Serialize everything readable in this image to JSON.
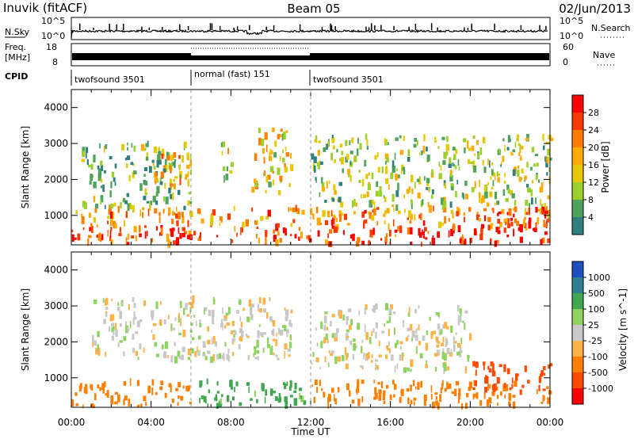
{
  "header": {
    "station": "Inuvik (fitACF)",
    "beam": "Beam 05",
    "date": "02/Jun/2013"
  },
  "top_panels": {
    "nsky_label": "N.Sky",
    "nsky_ticks": [
      "10^5",
      "10^0"
    ],
    "nsearch_label": "N.Search",
    "freq_label": "Freq.",
    "freq_unit": "[MHz]",
    "freq_ticks": [
      "18",
      "8"
    ],
    "nave_ticks": [
      "60",
      "0"
    ],
    "nave_label": "Nave",
    "cpid_label": "CPID",
    "cpid_segments": [
      {
        "name": "twofsound 3501",
        "start": "00:00",
        "end": "06:00"
      },
      {
        "name": "normal (fast) 151",
        "start": "06:00",
        "end": "12:00"
      },
      {
        "name": "twofsound 3501",
        "start": "12:00",
        "end": "24:00"
      }
    ]
  },
  "colorbars": {
    "power": {
      "label": "Power [dB]",
      "ticks": [
        "28",
        "24",
        "20",
        "16",
        "12",
        "8",
        "4"
      ],
      "colors": [
        "#ff0000",
        "#ff3a00",
        "#ff7e00",
        "#ffaa00",
        "#e6c800",
        "#9bd02a",
        "#4fa35a",
        "#2f7f7f",
        "#1f3fa6",
        "#0000ff"
      ]
    },
    "velocity": {
      "label": "Velocity [m s^-1]",
      "ticks": [
        "1000",
        "500",
        "100",
        "25",
        "-25",
        "-100",
        "-500",
        "-1000"
      ],
      "colors": [
        "#1e4fbf",
        "#2e7f8f",
        "#3fa84f",
        "#8fd35f",
        "#c8c8c8",
        "#ffb24a",
        "#ff7f00",
        "#ff4a00",
        "#ff0000"
      ]
    }
  },
  "chart_data": [
    {
      "type": "heatmap",
      "title": "Beam 05",
      "variable": "Power",
      "units": "dB",
      "xlabel": "Time UT",
      "ylabel": "Slant Range [km]",
      "x_ticks": [
        "00:00",
        "04:00",
        "08:00",
        "12:00",
        "16:00",
        "20:00",
        "00:00"
      ],
      "y_ticks": [
        1000,
        2000,
        3000,
        4000
      ],
      "xlim_hours": [
        0,
        24
      ],
      "ylim_km": [
        180,
        4500
      ],
      "scale_db": [
        0,
        30
      ],
      "bands": [
        {
          "t_start": 0.0,
          "t_end": 24.0,
          "range_km": [
            200,
            700
          ],
          "value": 28
        },
        {
          "t_start": 0.0,
          "t_end": 24.0,
          "range_km": [
            700,
            1200
          ],
          "value": 22
        },
        {
          "t_start": 0.5,
          "t_end": 6.0,
          "range_km": [
            1200,
            3000
          ],
          "value": 12
        },
        {
          "t_start": 4.0,
          "t_end": 6.0,
          "range_km": [
            1800,
            2800
          ],
          "value": 22
        },
        {
          "t_start": 7.5,
          "t_end": 8.2,
          "range_km": [
            2000,
            3000
          ],
          "value": 16
        },
        {
          "t_start": 9.0,
          "t_end": 11.0,
          "range_km": [
            1600,
            3400
          ],
          "value": 18
        },
        {
          "t_start": 12.0,
          "t_end": 24.0,
          "range_km": [
            1200,
            3200
          ],
          "value": 14
        },
        {
          "t_start": 20.0,
          "t_end": 24.0,
          "range_km": [
            600,
            1200
          ],
          "value": 26
        }
      ]
    },
    {
      "type": "heatmap",
      "variable": "Velocity",
      "units": "m s^-1",
      "xlabel": "Time UT",
      "ylabel": "Slant Range [km]",
      "x_ticks": [
        "00:00",
        "04:00",
        "08:00",
        "12:00",
        "16:00",
        "20:00",
        "00:00"
      ],
      "y_ticks": [
        1000,
        2000,
        3000,
        4000
      ],
      "xlim_hours": [
        0,
        24
      ],
      "ylim_km": [
        180,
        4500
      ],
      "bands": [
        {
          "t_start": 0.0,
          "t_end": 6.0,
          "range_km": [
            200,
            900
          ],
          "value": -300
        },
        {
          "t_start": 6.0,
          "t_end": 12.0,
          "range_km": [
            200,
            900
          ],
          "value": 150
        },
        {
          "t_start": 12.0,
          "t_end": 24.0,
          "range_km": [
            200,
            900
          ],
          "value": -400
        },
        {
          "t_start": 1.0,
          "t_end": 11.0,
          "range_km": [
            1500,
            3200
          ],
          "value": 0
        },
        {
          "t_start": 12.0,
          "t_end": 20.0,
          "range_km": [
            1200,
            3000
          ],
          "value": 0
        },
        {
          "t_start": 20.0,
          "t_end": 24.0,
          "range_km": [
            600,
            1400
          ],
          "value": -600
        }
      ]
    }
  ]
}
